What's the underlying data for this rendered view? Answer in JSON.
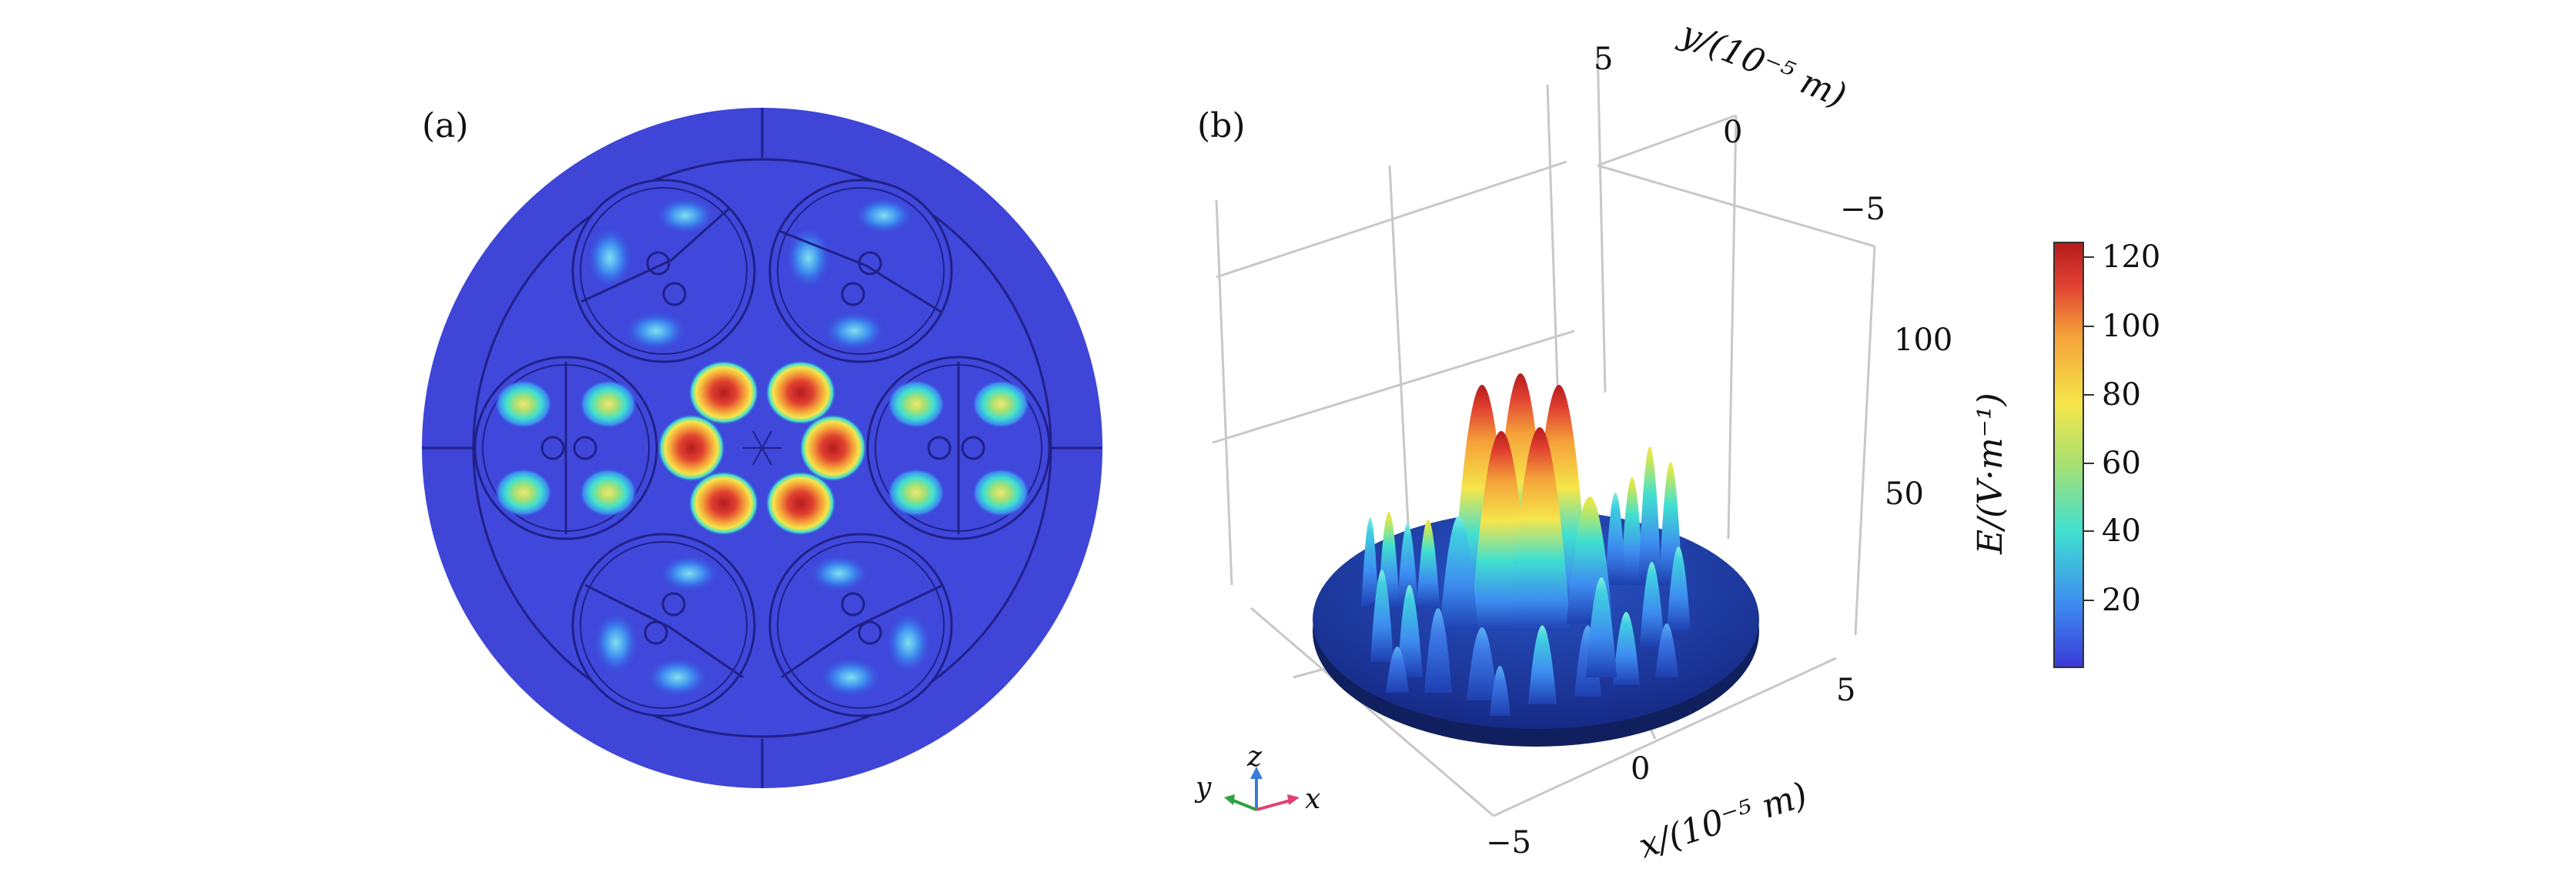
{
  "panels": {
    "a": {
      "label": "(a)"
    },
    "b": {
      "label": "(b)"
    }
  },
  "axes3d": {
    "y_label": "y/(10⁻⁵ m)",
    "x_label": "x/(10⁻⁵ m)",
    "y_ticks": [
      "5",
      "0",
      "−5"
    ],
    "x_ticks": [
      "−5",
      "0",
      "5"
    ],
    "z_ticks": [
      "50",
      "100"
    ]
  },
  "triad": {
    "x": "x",
    "y": "y",
    "z": "z"
  },
  "colorbar": {
    "label": "E/(V·m⁻¹)",
    "ticks": [
      "20",
      "40",
      "60",
      "80",
      "100",
      "120"
    ],
    "colors": [
      "#3a3ad8",
      "#3d8cf0",
      "#40e0d0",
      "#a8e070",
      "#f5e64a",
      "#f5a23a",
      "#e04030",
      "#b51c1c"
    ]
  },
  "chart_data": [
    {
      "type": "heatmap",
      "panel": "(a)",
      "description_values": {
        "center_hotspots": 6,
        "center_hotspot_field": 120,
        "outer_cores": 6,
        "outer_core_field": 50,
        "background_field": 5
      }
    },
    {
      "type": "surface3d",
      "panel": "(b)",
      "x_range": [
        -5,
        5
      ],
      "y_range": [
        -5,
        5
      ],
      "z_ticks": [
        50,
        100
      ],
      "colorbar_range": [
        0,
        125
      ]
    }
  ]
}
